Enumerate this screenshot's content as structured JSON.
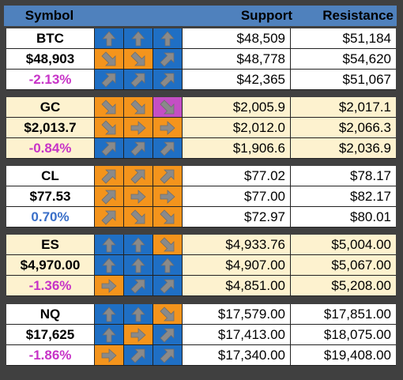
{
  "header": {
    "symbol_label": "Symbol",
    "support_label": "Support",
    "resistance_label": "Resistance",
    "color": "#4f81bd"
  },
  "colors": {
    "up_bg": "#1f6fc4",
    "down_bg": "#f4941c",
    "strong_down_bg": "#c44fc4",
    "arrow_fill": "#8a8a8a",
    "neg_text": "#c733c7",
    "pos_text": "#3a6fc8",
    "row_light_a": "#ffffff",
    "row_light_b": "#fdf2cf"
  },
  "instruments": [
    {
      "symbol": "BTC",
      "price": "$48,903",
      "change": "-2.13%",
      "change_sign": "neg",
      "bg": "#ffffff",
      "rows": [
        {
          "arrows": [
            "up-icon",
            "up-icon",
            "up-icon"
          ],
          "bgs": [
            "up",
            "up",
            "up"
          ],
          "support": "$48,509",
          "resistance": "$51,184"
        },
        {
          "arrows": [
            "down-right-icon",
            "down-right-icon",
            "up-right-icon"
          ],
          "bgs": [
            "down",
            "down",
            "up"
          ],
          "support": "$48,778",
          "resistance": "$54,620"
        },
        {
          "arrows": [
            "up-right-icon",
            "up-right-icon",
            "up-right-icon"
          ],
          "bgs": [
            "up",
            "up",
            "up"
          ],
          "support": "$42,365",
          "resistance": "$51,067"
        }
      ]
    },
    {
      "symbol": "GC",
      "price": "$2,013.7",
      "change": "-0.84%",
      "change_sign": "neg",
      "bg": "#fdf2cf",
      "rows": [
        {
          "arrows": [
            "down-right-icon",
            "down-right-icon",
            "down-right-icon"
          ],
          "bgs": [
            "down",
            "down",
            "strong_down"
          ],
          "support": "$2,005.9",
          "resistance": "$2,017.1"
        },
        {
          "arrows": [
            "down-right-icon",
            "right-icon",
            "right-icon"
          ],
          "bgs": [
            "down",
            "down",
            "down"
          ],
          "support": "$2,012.0",
          "resistance": "$2,066.3"
        },
        {
          "arrows": [
            "up-right-icon",
            "up-right-icon",
            "up-right-icon"
          ],
          "bgs": [
            "up",
            "up",
            "up"
          ],
          "support": "$1,906.6",
          "resistance": "$2,036.9"
        }
      ]
    },
    {
      "symbol": "CL",
      "price": "$77.53",
      "change": "0.70%",
      "change_sign": "pos",
      "bg": "#ffffff",
      "rows": [
        {
          "arrows": [
            "up-right-icon",
            "up-right-icon",
            "up-right-icon"
          ],
          "bgs": [
            "down",
            "down",
            "down"
          ],
          "support": "$77.02",
          "resistance": "$78.17"
        },
        {
          "arrows": [
            "up-right-icon",
            "right-icon",
            "right-icon"
          ],
          "bgs": [
            "down",
            "down",
            "down"
          ],
          "support": "$77.00",
          "resistance": "$82.17"
        },
        {
          "arrows": [
            "up-right-icon",
            "down-right-icon",
            "down-right-icon"
          ],
          "bgs": [
            "down",
            "down",
            "down"
          ],
          "support": "$72.97",
          "resistance": "$80.01"
        }
      ]
    },
    {
      "symbol": "ES",
      "price": "$4,970.00",
      "change": "-1.36%",
      "change_sign": "neg",
      "bg": "#fdf2cf",
      "rows": [
        {
          "arrows": [
            "up-icon",
            "up-icon",
            "down-right-icon"
          ],
          "bgs": [
            "up",
            "up",
            "down"
          ],
          "support": "$4,933.76",
          "resistance": "$5,004.00"
        },
        {
          "arrows": [
            "up-icon",
            "up-icon",
            "up-icon"
          ],
          "bgs": [
            "up",
            "up",
            "up"
          ],
          "support": "$4,907.00",
          "resistance": "$5,067.00"
        },
        {
          "arrows": [
            "right-icon",
            "up-right-icon",
            "up-right-icon"
          ],
          "bgs": [
            "down",
            "up",
            "up"
          ],
          "support": "$4,851.00",
          "resistance": "$5,208.00"
        }
      ]
    },
    {
      "symbol": "NQ",
      "price": "$17,625",
      "change": "-1.86%",
      "change_sign": "neg",
      "bg": "#ffffff",
      "rows": [
        {
          "arrows": [
            "up-icon",
            "up-icon",
            "down-right-icon"
          ],
          "bgs": [
            "up",
            "up",
            "down"
          ],
          "support": "$17,579.00",
          "resistance": "$17,851.00"
        },
        {
          "arrows": [
            "up-icon",
            "right-icon",
            "up-right-icon"
          ],
          "bgs": [
            "up",
            "down",
            "up"
          ],
          "support": "$17,413.00",
          "resistance": "$18,075.00"
        },
        {
          "arrows": [
            "right-icon",
            "up-right-icon",
            "up-right-icon"
          ],
          "bgs": [
            "down",
            "up",
            "up"
          ],
          "support": "$17,340.00",
          "resistance": "$19,408.00"
        }
      ]
    }
  ]
}
